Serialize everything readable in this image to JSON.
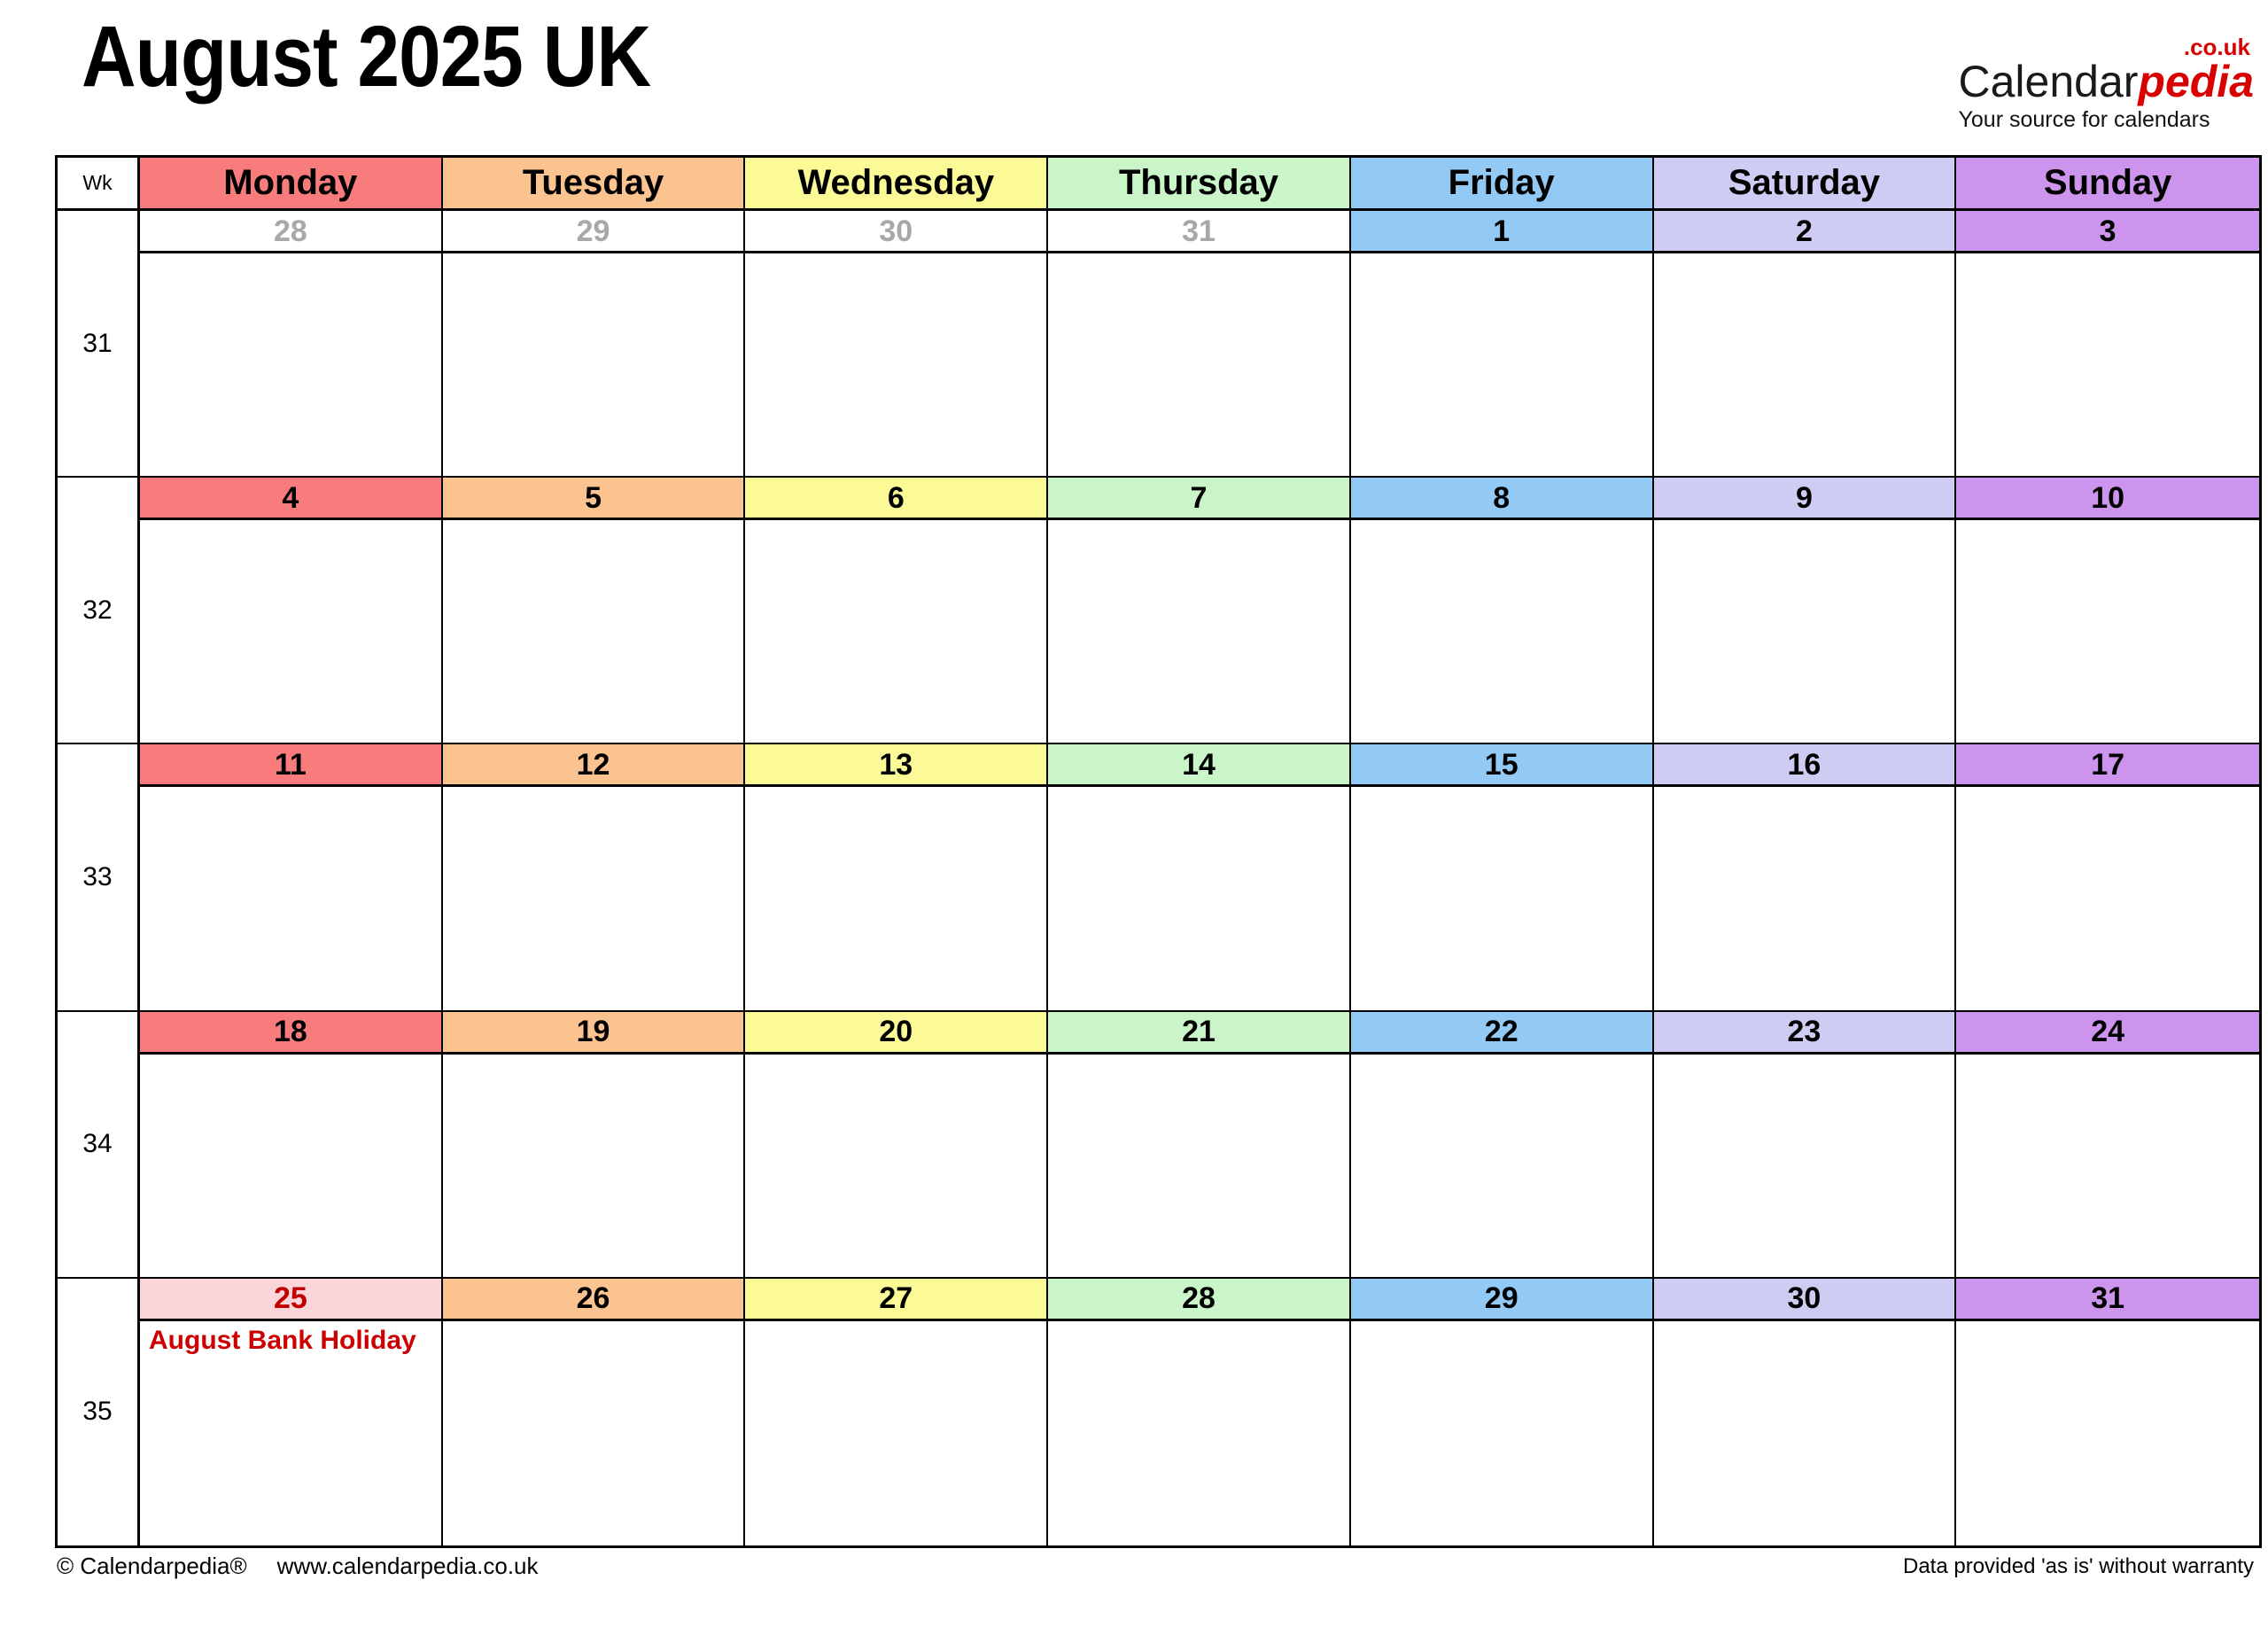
{
  "title": "August 2025 UK",
  "logo": {
    "name_black": "Calendar",
    "name_red": "pedia",
    "tld": ".co.uk",
    "tagline": "Your source for calendars"
  },
  "footer": {
    "copyright": "© Calendarpedia®",
    "url": "www.calendarpedia.co.uk",
    "disclaimer": "Data provided 'as is' without warranty"
  },
  "colors": {
    "monday": "#F97C7C",
    "tuesday": "#FBC38F",
    "wednesday": "#FBFA96",
    "thursday": "#C9F5C9",
    "friday": "#93CAF5",
    "saturday": "#CFCCF4",
    "sunday": "#CC94EC",
    "holiday_band": "#FAD5D9",
    "holiday_date": "#C00000",
    "holiday_note": "#CC0000",
    "outside_date": "#A8A8A8",
    "logo_red": "#D90000"
  },
  "calendar": {
    "wk_label": "Wk",
    "day_headers": [
      {
        "label": "Monday",
        "color_key": "monday"
      },
      {
        "label": "Tuesday",
        "color_key": "tuesday"
      },
      {
        "label": "Wednesday",
        "color_key": "wednesday"
      },
      {
        "label": "Thursday",
        "color_key": "thursday"
      },
      {
        "label": "Friday",
        "color_key": "friday"
      },
      {
        "label": "Saturday",
        "color_key": "saturday"
      },
      {
        "label": "Sunday",
        "color_key": "sunday"
      }
    ],
    "weeks": [
      {
        "week_number": "31",
        "days": [
          {
            "date": "28",
            "variant": "outside"
          },
          {
            "date": "29",
            "variant": "outside"
          },
          {
            "date": "30",
            "variant": "outside"
          },
          {
            "date": "31",
            "variant": "outside"
          },
          {
            "date": "1",
            "variant": "normal"
          },
          {
            "date": "2",
            "variant": "normal"
          },
          {
            "date": "3",
            "variant": "normal"
          }
        ]
      },
      {
        "week_number": "32",
        "days": [
          {
            "date": "4",
            "variant": "normal"
          },
          {
            "date": "5",
            "variant": "normal"
          },
          {
            "date": "6",
            "variant": "normal"
          },
          {
            "date": "7",
            "variant": "normal"
          },
          {
            "date": "8",
            "variant": "normal"
          },
          {
            "date": "9",
            "variant": "normal"
          },
          {
            "date": "10",
            "variant": "normal"
          }
        ]
      },
      {
        "week_number": "33",
        "days": [
          {
            "date": "11",
            "variant": "normal"
          },
          {
            "date": "12",
            "variant": "normal"
          },
          {
            "date": "13",
            "variant": "normal"
          },
          {
            "date": "14",
            "variant": "normal"
          },
          {
            "date": "15",
            "variant": "normal"
          },
          {
            "date": "16",
            "variant": "normal"
          },
          {
            "date": "17",
            "variant": "normal"
          }
        ]
      },
      {
        "week_number": "34",
        "days": [
          {
            "date": "18",
            "variant": "normal"
          },
          {
            "date": "19",
            "variant": "normal"
          },
          {
            "date": "20",
            "variant": "normal"
          },
          {
            "date": "21",
            "variant": "normal"
          },
          {
            "date": "22",
            "variant": "normal"
          },
          {
            "date": "23",
            "variant": "normal"
          },
          {
            "date": "24",
            "variant": "normal"
          }
        ]
      },
      {
        "week_number": "35",
        "days": [
          {
            "date": "25",
            "variant": "holiday",
            "note": "August Bank Holiday"
          },
          {
            "date": "26",
            "variant": "normal"
          },
          {
            "date": "27",
            "variant": "normal"
          },
          {
            "date": "28",
            "variant": "normal"
          },
          {
            "date": "29",
            "variant": "normal"
          },
          {
            "date": "30",
            "variant": "normal"
          },
          {
            "date": "31",
            "variant": "normal"
          }
        ]
      }
    ]
  }
}
